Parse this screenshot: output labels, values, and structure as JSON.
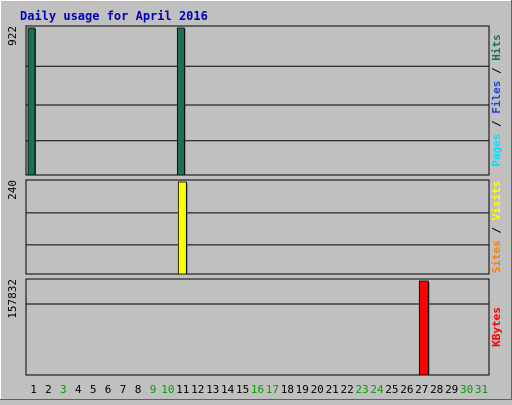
{
  "chart_data": {
    "title": "Daily usage for April 2016",
    "days": [
      "1",
      "2",
      "3",
      "4",
      "5",
      "6",
      "7",
      "8",
      "9",
      "10",
      "11",
      "12",
      "13",
      "14",
      "15",
      "16",
      "17",
      "18",
      "19",
      "20",
      "21",
      "22",
      "23",
      "24",
      "25",
      "26",
      "27",
      "28",
      "29",
      "30",
      "31"
    ],
    "weekend_days": [
      3,
      9,
      10,
      16,
      17,
      23,
      24,
      30,
      31
    ],
    "colors": {
      "background": "#c0c0c0",
      "title": "#0000c0",
      "hits": "#207050",
      "files": "#2040e0",
      "pages": "#00e0ff",
      "visits": "#ffff00",
      "sites": "#ff8000",
      "kbytes": "#ff0000",
      "weekday_label": "#000000",
      "weekend_label": "#00a000"
    },
    "panels": [
      {
        "type": "bar",
        "ymax": 922,
        "ymax_label": "922",
        "right_label_parts": [
          "Pages",
          " / ",
          "Files",
          " / ",
          "Hits"
        ],
        "right_label_colors": [
          "#00e0ff",
          "#000000",
          "#2040e0",
          "#000000",
          "#207050"
        ],
        "series": [
          {
            "name": "Hits",
            "color": "#207050",
            "values": [
              922,
              0,
              0,
              0,
              0,
              0,
              0,
              0,
              0,
              0,
              922,
              0,
              0,
              0,
              0,
              0,
              0,
              0,
              0,
              0,
              0,
              0,
              0,
              0,
              0,
              0,
              0,
              0,
              0,
              0,
              0
            ]
          },
          {
            "name": "Files",
            "color": "#2040e0",
            "values": [
              0,
              0,
              0,
              0,
              0,
              0,
              0,
              0,
              0,
              0,
              0,
              0,
              0,
              0,
              0,
              0,
              0,
              0,
              0,
              0,
              0,
              0,
              0,
              0,
              0,
              0,
              0,
              0,
              0,
              0,
              0
            ]
          },
          {
            "name": "Pages",
            "color": "#00e0ff",
            "values": [
              0,
              0,
              0,
              0,
              0,
              0,
              0,
              0,
              0,
              0,
              0,
              0,
              0,
              0,
              0,
              0,
              0,
              0,
              0,
              0,
              0,
              0,
              0,
              0,
              0,
              0,
              0,
              0,
              0,
              0,
              0
            ]
          }
        ]
      },
      {
        "type": "bar",
        "ymax": 240,
        "ymax_label": "240",
        "right_label_parts": [
          "Sites",
          " / ",
          "Visits"
        ],
        "right_label_colors": [
          "#ff8000",
          "#000000",
          "#ffff00"
        ],
        "series": [
          {
            "name": "Visits",
            "color": "#ffff00",
            "values": [
              0,
              0,
              0,
              0,
              0,
              0,
              0,
              0,
              0,
              0,
              240,
              0,
              0,
              0,
              0,
              0,
              0,
              0,
              0,
              0,
              0,
              0,
              0,
              0,
              0,
              0,
              0,
              0,
              0,
              0,
              0
            ]
          },
          {
            "name": "Sites",
            "color": "#ff8000",
            "values": [
              0,
              0,
              0,
              0,
              0,
              0,
              0,
              0,
              0,
              0,
              0,
              0,
              0,
              0,
              0,
              0,
              0,
              0,
              0,
              0,
              0,
              0,
              0,
              0,
              0,
              0,
              0,
              0,
              0,
              0,
              0
            ]
          }
        ]
      },
      {
        "type": "bar",
        "ymax": 157832,
        "ymax_label": "157832",
        "right_label_parts": [
          "KBytes"
        ],
        "right_label_colors": [
          "#ff0000"
        ],
        "series": [
          {
            "name": "KBytes",
            "color": "#ff0000",
            "values": [
              0,
              0,
              0,
              0,
              0,
              0,
              0,
              0,
              0,
              0,
              0,
              0,
              0,
              0,
              0,
              0,
              0,
              0,
              0,
              0,
              0,
              0,
              0,
              0,
              0,
              0,
              157832,
              0,
              0,
              0,
              0
            ]
          }
        ]
      }
    ]
  }
}
